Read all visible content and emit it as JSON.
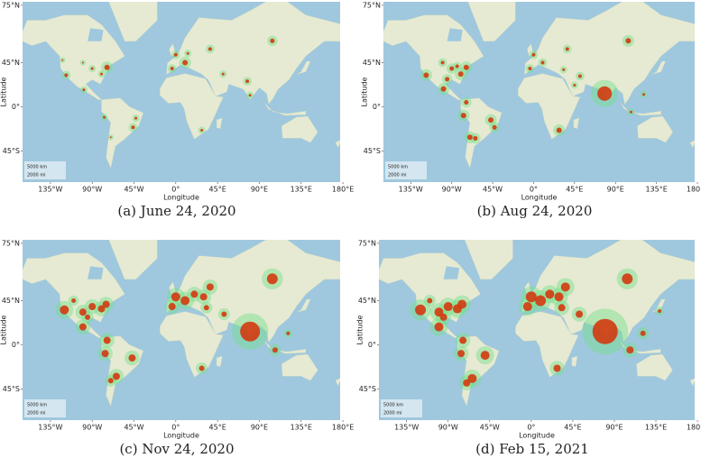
{
  "chart_data": [
    {
      "type": "scatter",
      "caption": "(a) June 24, 2020",
      "x_label": "Longitude",
      "y_label": "Latitude",
      "projection": "mercator",
      "xlim": [
        -165,
        177
      ],
      "ylim": [
        -65,
        76
      ],
      "xticks": [
        {
          "value": -135,
          "label": "135°W"
        },
        {
          "value": -90,
          "label": "90°W"
        },
        {
          "value": -45,
          "label": "45°W"
        },
        {
          "value": 0,
          "label": "0°"
        },
        {
          "value": 45,
          "label": "45°E"
        },
        {
          "value": 90,
          "label": "90°E"
        },
        {
          "value": 135,
          "label": "135°E"
        },
        {
          "value": 180,
          "label": "180°E"
        }
      ],
      "yticks": [
        {
          "value": 75,
          "label": "75°N"
        },
        {
          "value": 45,
          "label": "45°N"
        },
        {
          "value": 0,
          "label": "0°"
        },
        {
          "value": -45,
          "label": "45°S"
        }
      ],
      "scale_labels": [
        "5000 km",
        "2000 mi"
      ],
      "color": "#d23a10",
      "halo_color": "#74e08a",
      "x": [
        -74,
        -90,
        -118,
        -100,
        -80,
        -122,
        -99,
        -46,
        -43,
        -77,
        -70,
        0,
        10,
        -4,
        13,
        37,
        104,
        77,
        80,
        51,
        28
      ],
      "y": [
        41,
        40,
        34,
        45,
        35,
        47,
        19,
        -23,
        -13,
        -12,
        -33,
        51,
        45,
        40,
        52,
        55,
        60,
        28,
        13,
        35,
        -26
      ],
      "sizes": [
        3,
        1.5,
        2,
        1,
        1.5,
        1,
        1.5,
        2,
        1.5,
        1.5,
        1,
        2,
        3,
        2,
        1.5,
        2,
        2.5,
        2,
        1.5,
        1.5,
        1.5
      ]
    },
    {
      "type": "scatter",
      "caption": "(b) Aug 24, 2020",
      "x_label": "Longitude",
      "y_label": "Latitude",
      "projection": "mercator",
      "xlim": [
        -165,
        177
      ],
      "ylim": [
        -65,
        76
      ],
      "xticks": [
        {
          "value": -135,
          "label": "135°W"
        },
        {
          "value": -90,
          "label": "90°W"
        },
        {
          "value": -45,
          "label": "45°W"
        },
        {
          "value": 0,
          "label": "0°"
        },
        {
          "value": 45,
          "label": "45°E"
        },
        {
          "value": 90,
          "label": "90°E"
        },
        {
          "value": 135,
          "label": "135°E"
        },
        {
          "value": 180,
          "label": "180°E"
        }
      ],
      "yticks": [
        {
          "value": 75,
          "label": "75°N"
        },
        {
          "value": 45,
          "label": "45°N"
        },
        {
          "value": 0,
          "label": "0°"
        },
        {
          "value": -45,
          "label": "45°S"
        }
      ],
      "scale_labels": [
        "5000 km",
        "2000 mi"
      ],
      "color": "#d23a10",
      "halo_color": "#74e08a",
      "x": [
        -74,
        -90,
        -118,
        -100,
        -80,
        -95,
        -84,
        -99,
        -74,
        -77,
        -47,
        -43,
        -70,
        -64,
        0,
        10,
        -4,
        37,
        104,
        78,
        51,
        33,
        45,
        28,
        107,
        121
      ],
      "y": [
        41,
        40,
        34,
        45,
        35,
        30,
        42,
        20,
        5,
        -10,
        -15,
        -23,
        -33,
        -34,
        51,
        45,
        40,
        55,
        60,
        15,
        33,
        39,
        24,
        -26,
        -6,
        14
      ],
      "sizes": [
        3,
        2.5,
        3,
        2,
        3,
        2.5,
        2,
        3,
        2.5,
        3,
        3,
        2.5,
        3,
        2.5,
        2,
        2,
        2,
        2,
        3,
        8,
        2,
        1.5,
        1.5,
        3,
        1.5,
        1.5
      ]
    },
    {
      "type": "scatter",
      "caption": "(c) Nov 24, 2020",
      "x_label": "Longitude",
      "y_label": "Latitude",
      "projection": "mercator",
      "xlim": [
        -165,
        177
      ],
      "ylim": [
        -65,
        76
      ],
      "xticks": [
        {
          "value": -135,
          "label": "135°W"
        },
        {
          "value": -90,
          "label": "90°W"
        },
        {
          "value": -45,
          "label": "45°W"
        },
        {
          "value": 0,
          "label": "0°"
        },
        {
          "value": 45,
          "label": "45°E"
        },
        {
          "value": 90,
          "label": "90°E"
        },
        {
          "value": 135,
          "label": "135°E"
        },
        {
          "value": 180,
          "label": "180°E"
        }
      ],
      "yticks": [
        {
          "value": 75,
          "label": "75°N"
        },
        {
          "value": 45,
          "label": "45°N"
        },
        {
          "value": 0,
          "label": "0°"
        },
        {
          "value": -45,
          "label": "45°S"
        }
      ],
      "scale_labels": [
        "5000 km",
        "2000 mi"
      ],
      "color": "#d23a10",
      "halo_color": "#74e08a",
      "x": [
        -120,
        -100,
        -90,
        -80,
        -75,
        -95,
        -110,
        -100,
        -74,
        -76,
        -47,
        -64,
        -70,
        0,
        10,
        -4,
        20,
        30,
        37,
        104,
        80,
        52,
        33,
        28,
        107,
        121
      ],
      "y": [
        37,
        35,
        40,
        38,
        42,
        30,
        45,
        20,
        5,
        -10,
        -15,
        -34,
        -38,
        48,
        45,
        40,
        50,
        48,
        55,
        60,
        15,
        33,
        39,
        -26,
        -6,
        13
      ],
      "sizes": [
        5,
        4,
        4,
        4,
        4,
        3,
        2.5,
        4,
        4,
        4,
        4,
        4,
        3,
        5,
        5,
        4,
        4,
        4,
        4,
        6,
        11,
        3,
        3,
        3,
        3,
        2
      ]
    },
    {
      "type": "scatter",
      "caption": "(d) Feb 15, 2021",
      "x_label": "Longitude",
      "y_label": "Latitude",
      "projection": "mercator",
      "xlim": [
        -165,
        177
      ],
      "ylim": [
        -65,
        76
      ],
      "xticks": [
        {
          "value": -135,
          "label": "135°W"
        },
        {
          "value": -90,
          "label": "90°W"
        },
        {
          "value": -45,
          "label": "45°W"
        },
        {
          "value": 0,
          "label": "0°"
        },
        {
          "value": 45,
          "label": "45°E"
        },
        {
          "value": 90,
          "label": "90°E"
        },
        {
          "value": 135,
          "label": "135°E"
        },
        {
          "value": 180,
          "label": "180°E"
        }
      ],
      "yticks": [
        {
          "value": 75,
          "label": "75°N"
        },
        {
          "value": 45,
          "label": "45°N"
        },
        {
          "value": 0,
          "label": "0°"
        },
        {
          "value": -45,
          "label": "45°S"
        }
      ],
      "scale_labels": [
        "5000 km",
        "2000 mi"
      ],
      "color": "#d23a10",
      "halo_color": "#74e08a",
      "x": [
        -120,
        -100,
        -90,
        -80,
        -75,
        -95,
        -110,
        -100,
        -74,
        -76,
        -50,
        -64,
        -70,
        0,
        10,
        -4,
        20,
        30,
        37,
        104,
        80,
        52,
        33,
        28,
        107,
        121,
        139
      ],
      "y": [
        37,
        35,
        40,
        38,
        42,
        30,
        45,
        20,
        5,
        -10,
        -12,
        -36,
        -40,
        48,
        45,
        40,
        50,
        48,
        55,
        60,
        15,
        33,
        39,
        -26,
        -6,
        13,
        36
      ],
      "sizes": [
        6,
        5,
        5,
        5,
        5,
        4,
        3,
        5,
        4,
        4,
        5,
        5,
        4,
        6,
        6,
        5,
        5,
        5,
        5,
        6,
        14,
        4,
        4,
        4,
        4,
        3,
        2
      ]
    }
  ]
}
